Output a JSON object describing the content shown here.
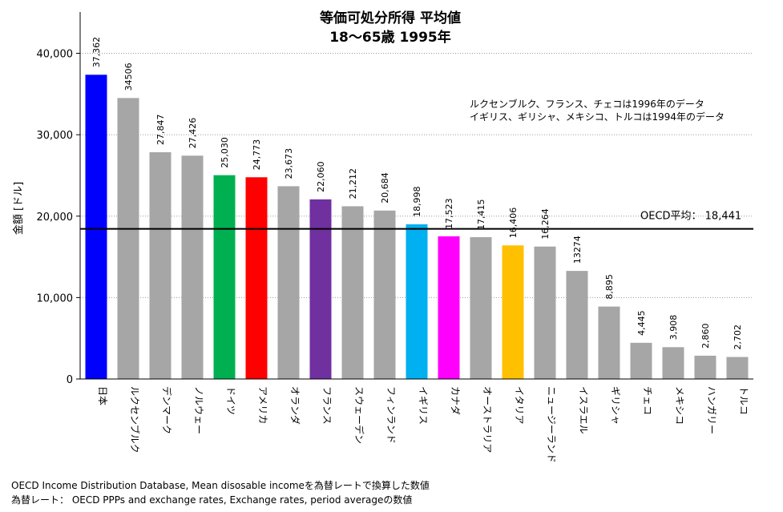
{
  "chart_data": {
    "type": "bar",
    "title": "等価可処分所得 平均値",
    "subtitle": "18〜65歳 1995年",
    "ylabel": "金額 [ドル]",
    "xlabel": "",
    "ylim": [
      0,
      45000
    ],
    "yticks": [
      0,
      10000,
      20000,
      30000,
      40000
    ],
    "ytick_labels": [
      "0",
      "10,000",
      "20,000",
      "30,000",
      "40,000"
    ],
    "grid": true,
    "categories": [
      "日本",
      "ルクセンブルク",
      "デンマーク",
      "ノルウェー",
      "ドイツ",
      "アメリカ",
      "オランダ",
      "フランス",
      "スウェーデン",
      "フィンランド",
      "イギリス",
      "カナダ",
      "オーストラリア",
      "イタリア",
      "ニュージーランド",
      "イスラエル",
      "ギリシャ",
      "チェコ",
      "メキシコ",
      "ハンガリー",
      "トルコ"
    ],
    "values": [
      37362,
      34506,
      27847,
      27426,
      25030,
      24773,
      23673,
      22060,
      21212,
      20684,
      18998,
      17523,
      17415,
      16406,
      16264,
      13274,
      8895,
      4445,
      3908,
      2860,
      2702
    ],
    "value_labels": [
      "37,362",
      "34506",
      "27,847",
      "27,426",
      "25,030",
      "24,773",
      "23,673",
      "22,060",
      "21,212",
      "20,684",
      "18,998",
      "17,523",
      "17,415",
      "16,406",
      "16,264",
      "13274",
      "8,895",
      "4,445",
      "3,908",
      "2,860",
      "2,702"
    ],
    "colors": [
      "#0000ff",
      "#a6a6a6",
      "#a6a6a6",
      "#a6a6a6",
      "#00b050",
      "#ff0000",
      "#a6a6a6",
      "#7030a0",
      "#a6a6a6",
      "#a6a6a6",
      "#00b0f0",
      "#ff00ff",
      "#a6a6a6",
      "#ffc000",
      "#a6a6a6",
      "#a6a6a6",
      "#a6a6a6",
      "#a6a6a6",
      "#a6a6a6",
      "#a6a6a6",
      "#a6a6a6"
    ],
    "reference_line": {
      "label": "OECD平均：  18,441",
      "value": 18441
    },
    "annotations": [
      "ルクセンブルク、フランス、チェコは1996年のデータ",
      "イギリス、ギリシャ、メキシコ、トルコは1994年のデータ"
    ]
  },
  "footnotes": [
    "OECD Income Distribution Database, Mean disosable incomeを為替レートで換算した数値",
    "為替レート： OECD PPPs and exchange rates, Exchange rates, period averageの数値"
  ]
}
